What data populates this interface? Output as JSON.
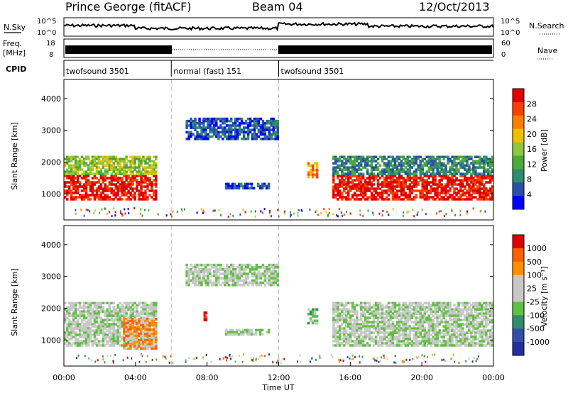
{
  "header": {
    "station": "Prince George (fitACF)",
    "beam": "Beam 04",
    "date": "12/Oct/2013"
  },
  "top_panels": {
    "nsky_label": "N.Sky",
    "nsky_ticks": [
      "10^5",
      "10^0"
    ],
    "nsearch_label": "N.Search",
    "nsearch_ticks": [
      "10^5",
      "10^0"
    ],
    "freq_label_1": "Freq.",
    "freq_label_2": "[MHz]",
    "freq_ticks": [
      "18",
      "8"
    ],
    "nave_label": "Nave",
    "nave_ticks": [
      "60",
      "0"
    ],
    "cpid_label": "CPID",
    "cpid_segments": [
      {
        "label": "twofsound 3501",
        "start": 0,
        "end": 6
      },
      {
        "label": "normal (fast) 151",
        "start": 6,
        "end": 12
      },
      {
        "label": "twofsound 3501",
        "start": 12,
        "end": 24
      }
    ]
  },
  "colors": {
    "power": [
      "#0000ff",
      "#2a4fa8",
      "#2f8c6e",
      "#4ea93a",
      "#8fc63f",
      "#f0c000",
      "#ff8000",
      "#ff4000",
      "#e00000"
    ],
    "velocity": [
      "#2030a0",
      "#3050a8",
      "#2f8c6e",
      "#60c040",
      "#c8c8c8",
      "#c8c8c8",
      "#ff9000",
      "#ff6000",
      "#e00000"
    ]
  },
  "chart_data": [
    {
      "type": "heatmap",
      "name": "power",
      "ylabel": "Slant Range [km]",
      "xlim": [
        0,
        24
      ],
      "ylim": [
        180,
        4600
      ],
      "yticks": [
        "1000",
        "2000",
        "3000",
        "4000"
      ],
      "colorbar_label": "Power [dB]",
      "colorbar_ticks": [
        "28",
        "24",
        "20",
        "16",
        "12",
        "8",
        "4"
      ],
      "regions": [
        {
          "t0": 0.0,
          "t1": 5.2,
          "r0": 800,
          "r1": 1600,
          "level": 8
        },
        {
          "t0": 0.0,
          "t1": 5.2,
          "r0": 1600,
          "r1": 2200,
          "level": 4
        },
        {
          "t0": 6.8,
          "t1": 12.0,
          "r0": 2700,
          "r1": 3400,
          "level": 1
        },
        {
          "t0": 9.0,
          "t1": 11.5,
          "r0": 1150,
          "r1": 1350,
          "level": 1
        },
        {
          "t0": 13.6,
          "t1": 14.2,
          "r0": 1500,
          "r1": 2000,
          "level": 6
        },
        {
          "t0": 15.0,
          "t1": 24.0,
          "r0": 800,
          "r1": 1600,
          "level": 8
        },
        {
          "t0": 15.0,
          "t1": 24.0,
          "r0": 1600,
          "r1": 2200,
          "level": 2
        }
      ]
    },
    {
      "type": "heatmap",
      "name": "velocity",
      "xlabel": "Time UT",
      "ylabel": "Slant Range [km]",
      "xlim": [
        0,
        24
      ],
      "ylim": [
        180,
        4600
      ],
      "xticks": [
        "00:00",
        "04:00",
        "08:00",
        "12:00",
        "16:00",
        "20:00",
        "00:00"
      ],
      "yticks": [
        "1000",
        "2000",
        "3000",
        "4000"
      ],
      "colorbar_label": "Velocity [m s⁻¹]",
      "colorbar_ticks": [
        "1000",
        "500",
        "100",
        "25",
        "-25",
        "-100",
        "-500",
        "-1000"
      ],
      "regions": [
        {
          "t0": 0.0,
          "t1": 5.2,
          "r0": 800,
          "r1": 2200,
          "level": 4
        },
        {
          "t0": 3.3,
          "t1": 5.2,
          "r0": 700,
          "r1": 1700,
          "level": 6
        },
        {
          "t0": 6.8,
          "t1": 12.0,
          "r0": 2700,
          "r1": 3400,
          "level": 4
        },
        {
          "t0": 9.0,
          "t1": 11.5,
          "r0": 1150,
          "r1": 1350,
          "level": 4
        },
        {
          "t0": 7.8,
          "t1": 8.0,
          "r0": 1600,
          "r1": 1900,
          "level": 8
        },
        {
          "t0": 13.6,
          "t1": 14.2,
          "r0": 1500,
          "r1": 2000,
          "level": 3
        },
        {
          "t0": 15.0,
          "t1": 24.0,
          "r0": 800,
          "r1": 2200,
          "level": 4
        }
      ]
    }
  ]
}
